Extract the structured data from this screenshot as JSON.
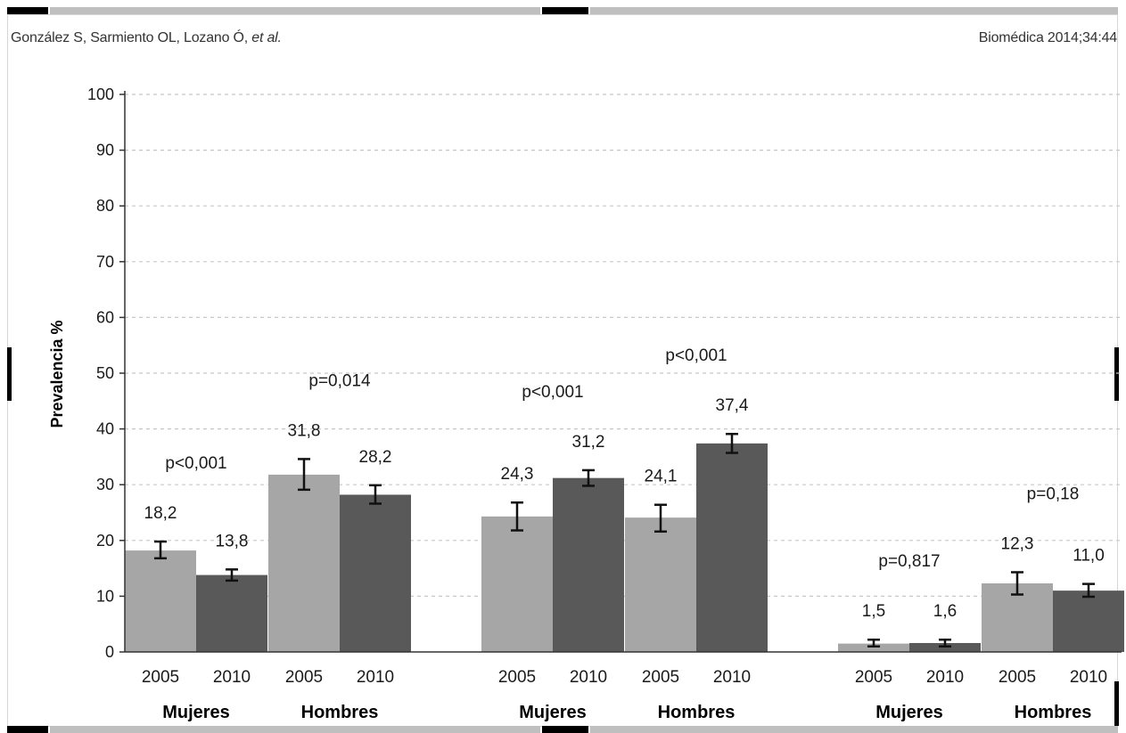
{
  "header": {
    "authors": "González S, Sarmiento OL, Lozano Ó,",
    "etal": "et al.",
    "journal": "Biomédica 2014;34:44"
  },
  "colors": {
    "year_2005": "#a6a6a6",
    "year_2010": "#595959",
    "gridline": "#c8c8c8"
  },
  "chart_data": {
    "type": "bar",
    "title": "",
    "xlabel": "",
    "ylabel": "Prevalencia %",
    "ylim": [
      0,
      100
    ],
    "yticks": [
      "0",
      "10",
      "20",
      "30",
      "40",
      "50",
      "60",
      "70",
      "80",
      "90",
      "100"
    ],
    "grid": true,
    "grid_style": "dashed horizontal",
    "panels": [
      {
        "groups": [
          {
            "label": "Mujeres",
            "p_value": "p<0,001",
            "bars": [
              {
                "year": "2005",
                "value": 18.2,
                "label": "18,2",
                "ci": [
                  16.8,
                  19.8
                ]
              },
              {
                "year": "2010",
                "value": 13.8,
                "label": "13,8",
                "ci": [
                  12.8,
                  14.8
                ]
              }
            ]
          },
          {
            "label": "Hombres",
            "p_value": "p=0,014",
            "bars": [
              {
                "year": "2005",
                "value": 31.8,
                "label": "31,8",
                "ci": [
                  29.1,
                  34.6
                ]
              },
              {
                "year": "2010",
                "value": 28.2,
                "label": "28,2",
                "ci": [
                  26.6,
                  29.9
                ]
              }
            ]
          }
        ]
      },
      {
        "groups": [
          {
            "label": "Mujeres",
            "p_value": "p<0,001",
            "bars": [
              {
                "year": "2005",
                "value": 24.3,
                "label": "24,3",
                "ci": [
                  21.8,
                  26.8
                ]
              },
              {
                "year": "2010",
                "value": 31.2,
                "label": "31,2",
                "ci": [
                  29.8,
                  32.6
                ]
              }
            ]
          },
          {
            "label": "Hombres",
            "p_value": "p<0,001",
            "bars": [
              {
                "year": "2005",
                "value": 24.1,
                "label": "24,1",
                "ci": [
                  21.6,
                  26.4
                ]
              },
              {
                "year": "2010",
                "value": 37.4,
                "label": "37,4",
                "ci": [
                  35.7,
                  39.1
                ]
              }
            ]
          }
        ]
      },
      {
        "groups": [
          {
            "label": "Mujeres",
            "p_value": "p=0,817",
            "bars": [
              {
                "year": "2005",
                "value": 1.5,
                "label": "1,5",
                "ci": [
                  1.0,
                  2.2
                ]
              },
              {
                "year": "2010",
                "value": 1.6,
                "label": "1,6",
                "ci": [
                  1.0,
                  2.2
                ]
              }
            ]
          },
          {
            "label": "Hombres",
            "p_value": "p=0,18",
            "bars": [
              {
                "year": "2005",
                "value": 12.3,
                "label": "12,3",
                "ci": [
                  10.3,
                  14.3
                ]
              },
              {
                "year": "2010",
                "value": 11.0,
                "label": "11,0",
                "ci": [
                  9.9,
                  12.2
                ]
              }
            ]
          }
        ]
      }
    ]
  }
}
